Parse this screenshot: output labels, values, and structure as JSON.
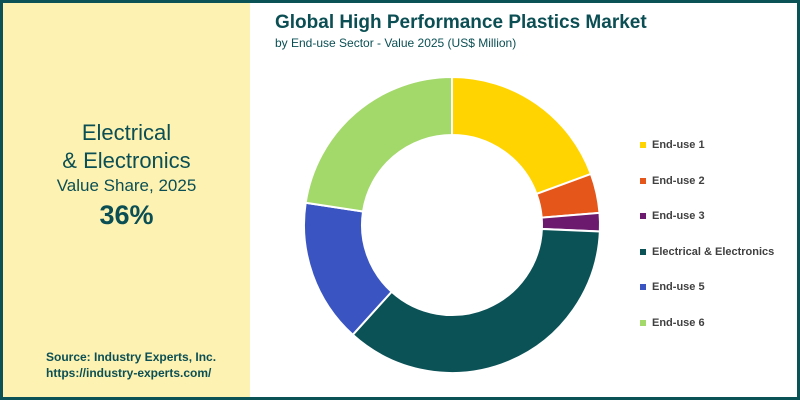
{
  "highlight": {
    "line1": "Electrical",
    "line2": "& Electronics",
    "line3": "Value Share, 2025",
    "value": "36%"
  },
  "source": {
    "line1": "Source: Industry Experts, Inc.",
    "line2": "https://industry-experts.com/"
  },
  "chart_data": {
    "type": "pie",
    "donut": true,
    "title": "Global High Performance Plastics Market",
    "subtitle": "by End-use Sector - Value 2025 (US$ Million)",
    "legend_position": "right",
    "series": [
      {
        "name": "End-use 1",
        "value": 19.4,
        "color": "#ffd400"
      },
      {
        "name": "End-use 2",
        "value": 4.3,
        "color": "#e4561a"
      },
      {
        "name": "End-use 3",
        "value": 2.0,
        "color": "#6b1a6e"
      },
      {
        "name": "Electrical & Electronics",
        "value": 36,
        "color": "#0b5257"
      },
      {
        "name": "End-use 5",
        "value": 15.7,
        "color": "#3a55c2"
      },
      {
        "name": "End-use 6",
        "value": 22.6,
        "color": "#a3d86a"
      }
    ]
  }
}
